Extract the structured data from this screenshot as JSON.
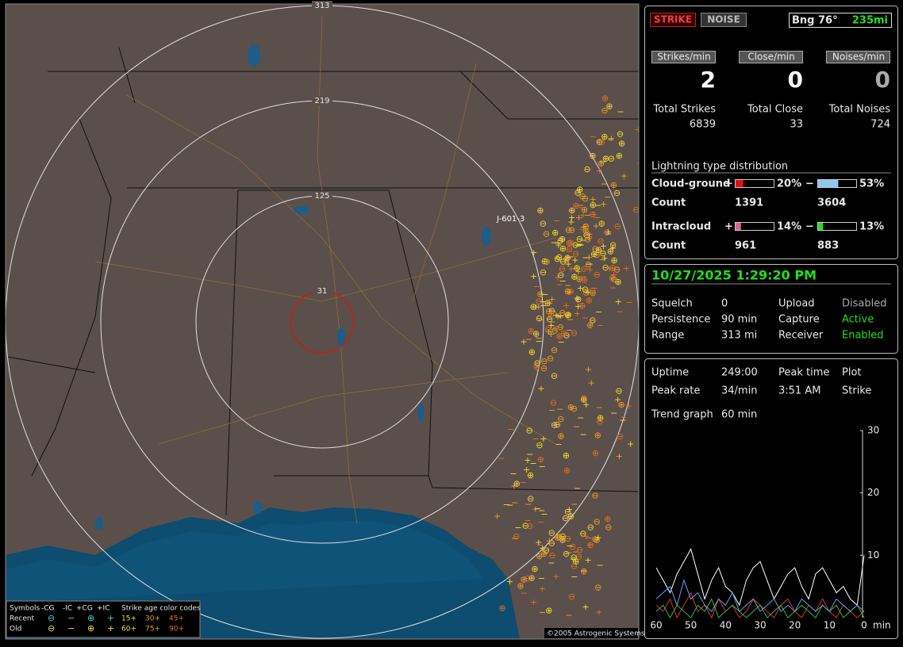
{
  "map": {
    "ring_labels": [
      "313",
      "219",
      "125",
      "31"
    ],
    "station": "J-601-3",
    "copyright": "©2005 Astrogenic Systems",
    "legend": {
      "headers": [
        "Symbols",
        "-CG",
        "-IC",
        "+CG",
        "+IC",
        "Strike age color codes"
      ],
      "rows": [
        {
          "label": "Recent",
          "symbols": [
            "⊖",
            "−",
            "⊕",
            "+"
          ],
          "ages": [
            "15+",
            "30+",
            "45+"
          ]
        },
        {
          "label": "Old",
          "symbols": [
            "⊖",
            "−",
            "⊕",
            "+"
          ],
          "ages": [
            "60+",
            "75+",
            "90+"
          ]
        }
      ]
    }
  },
  "status": {
    "buttons": [
      "STRIKE",
      "NOISE"
    ],
    "bearing": "Bng 76°",
    "distance": "235mi",
    "rates": [
      {
        "label": "Strikes/min",
        "value": 2
      },
      {
        "label": "Close/min",
        "value": 0
      },
      {
        "label": "Noises/min",
        "value": 0
      }
    ],
    "totals": [
      {
        "label": "Total Strikes",
        "value": 6839
      },
      {
        "label": "Total Close",
        "value": 33
      },
      {
        "label": "Total Noises",
        "value": 724
      }
    ]
  },
  "distribution": {
    "title": "Lightning type distribution",
    "count_label": "Count",
    "types": [
      {
        "label": "Cloud-ground",
        "pos": {
          "sign": "+",
          "value": 20,
          "label": "20%",
          "color": "#e01010",
          "count": 1391
        },
        "neg": {
          "sign": "−",
          "value": 53,
          "label": "53%",
          "color": "#8ec8f0",
          "count": 3604
        }
      },
      {
        "label": "Intracloud",
        "pos": {
          "sign": "+",
          "value": 14,
          "label": "14%",
          "color": "#e060a0",
          "count": 961
        },
        "neg": {
          "sign": "−",
          "value": 13,
          "label": "13%",
          "color": "#20e020",
          "count": 883
        }
      }
    ]
  },
  "datetime": "10/27/2025 1:29:20 PM",
  "settings": [
    [
      "Squelch",
      "0",
      "Upload",
      "Disabled"
    ],
    [
      "Persistence",
      "90 min",
      "Capture",
      "Active"
    ],
    [
      "Range",
      "313 mi",
      "Receiver",
      "Enabled"
    ]
  ],
  "stats": [
    [
      "Uptime",
      "249:00",
      "Peak time",
      "Plot"
    ],
    [
      "Peak rate",
      "34/min",
      "3:51 AM",
      "Strike"
    ],
    [
      "Trend graph",
      "60 min"
    ]
  ],
  "chart_data": {
    "type": "line",
    "x": [
      60,
      58,
      56,
      54,
      52,
      50,
      48,
      46,
      44,
      42,
      40,
      38,
      36,
      34,
      32,
      30,
      28,
      26,
      24,
      22,
      20,
      18,
      16,
      14,
      12,
      10,
      8,
      6,
      4,
      2,
      0
    ],
    "xticks": [
      60,
      50,
      40,
      30,
      20,
      10,
      0
    ],
    "xunit": "min",
    "xlim": [
      60,
      0
    ],
    "ylim": [
      0,
      30
    ],
    "yticks": [
      10,
      20,
      30
    ],
    "series": [
      {
        "color": "#ffffff",
        "values": [
          8,
          6,
          4,
          7,
          9,
          11,
          7,
          3,
          6,
          8,
          5,
          4,
          2,
          6,
          8,
          9,
          6,
          3,
          5,
          7,
          8,
          5,
          3,
          7,
          8,
          6,
          4,
          5,
          3,
          2,
          10
        ]
      },
      {
        "color": "#e03030",
        "values": [
          2,
          1,
          3,
          0,
          2,
          4,
          1,
          2,
          0,
          3,
          1,
          2,
          0,
          1,
          3,
          2,
          1,
          0,
          2,
          3,
          1,
          0,
          2,
          1,
          3,
          1,
          0,
          2,
          1,
          0,
          1
        ]
      },
      {
        "color": "#30c030",
        "values": [
          1,
          2,
          0,
          2,
          1,
          0,
          2,
          1,
          3,
          0,
          1,
          2,
          1,
          0,
          1,
          2,
          0,
          1,
          2,
          0,
          1,
          2,
          1,
          0,
          2,
          1,
          2,
          0,
          1,
          2,
          0
        ]
      },
      {
        "color": "#60a0f0",
        "values": [
          3,
          4,
          5,
          2,
          6,
          3,
          4,
          2,
          1,
          3,
          2,
          4,
          1,
          2,
          3,
          1,
          2,
          3,
          1,
          2,
          1,
          3,
          2,
          1,
          2,
          1,
          3,
          2,
          1,
          2,
          1
        ]
      }
    ]
  }
}
